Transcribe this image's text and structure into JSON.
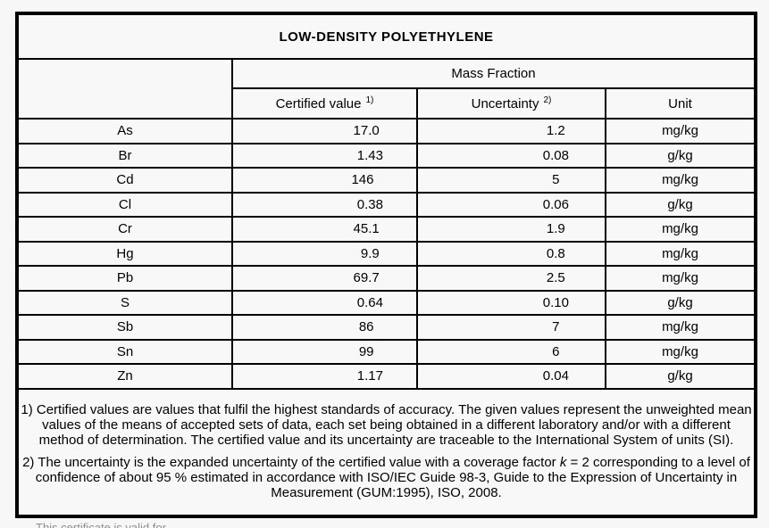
{
  "page": {
    "background": "#f7f7f7",
    "border_color": "#000000",
    "text_color": "#000000",
    "muted_text_color": "#8f8f8f"
  },
  "certificate": {
    "title": "LOW-DENSITY POLYETHYLENE",
    "table": {
      "group_header": "Mass Fraction",
      "columns": {
        "certified_label": "Certified value",
        "certified_note_ref": "1)",
        "uncertainty_label": "Uncertainty",
        "uncertainty_note_ref": "2)",
        "unit_label": "Unit"
      },
      "rows": [
        {
          "element": "As",
          "certified": "17.0",
          "uncertainty": "1.2",
          "unit": "mg/kg"
        },
        {
          "element": "Br",
          "certified": "1.43",
          "uncertainty": "0.08",
          "unit": "g/kg"
        },
        {
          "element": "Cd",
          "certified": "146",
          "uncertainty": "5",
          "unit": "mg/kg"
        },
        {
          "element": "Cl",
          "certified": "0.38",
          "uncertainty": "0.06",
          "unit": "g/kg"
        },
        {
          "element": "Cr",
          "certified": "45.1",
          "uncertainty": "1.9",
          "unit": "mg/kg"
        },
        {
          "element": "Hg",
          "certified": "9.9",
          "uncertainty": "0.8",
          "unit": "mg/kg"
        },
        {
          "element": "Pb",
          "certified": "69.7",
          "uncertainty": "2.5",
          "unit": "mg/kg"
        },
        {
          "element": "S",
          "certified": "0.64",
          "uncertainty": "0.10",
          "unit": "g/kg"
        },
        {
          "element": "Sb",
          "certified": "86",
          "uncertainty": "7",
          "unit": "mg/kg"
        },
        {
          "element": "Sn",
          "certified": "99",
          "uncertainty": "6",
          "unit": "mg/kg"
        },
        {
          "element": "Zn",
          "certified": "1.17",
          "uncertainty": "0.04",
          "unit": "g/kg"
        }
      ]
    },
    "footnotes": {
      "note1": "1) Certified values are values that fulfil the highest standards of accuracy. The given values represent the unweighted mean values of the means of accepted sets of data, each set being obtained in a different laboratory and/or with a different method of determination. The certified value and its uncertainty are traceable to the International System of units (SI).",
      "note2_pre": "2) The uncertainty is the expanded uncertainty of the certified value with a coverage factor ",
      "note2_k": "k",
      "note2_post": " = 2 corresponding to a level of confidence of about 95 % estimated in accordance with ISO/IEC Guide 98-3, Guide to the Expression of Uncertainty in Measurement (GUM:1995), ISO, 2008."
    }
  },
  "below_certificate": {
    "clipped_text": "This certificate is valid for ..."
  }
}
